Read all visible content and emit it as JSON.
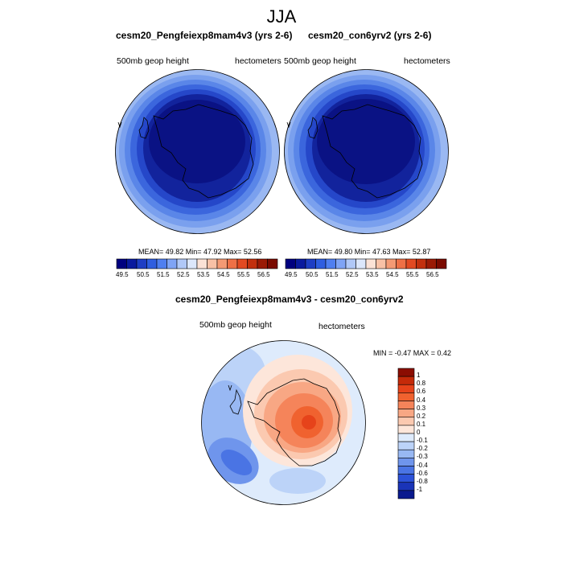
{
  "title": "JJA",
  "panels": [
    {
      "title": "cesm20_Pengfeiexp8mam4v3 (yrs 2-6)",
      "left_label": "500mb geop height",
      "right_label": "hectometers",
      "stats": "MEAN=  49.82  Min=  47.92  Max=  52.56"
    },
    {
      "title": "cesm20_con6yrv2 (yrs 2-6)",
      "left_label": "500mb geop height",
      "right_label": "hectometers",
      "stats": "MEAN=  49.80  Min=  47.63  Max=  52.87"
    }
  ],
  "top_colorbar": {
    "labels": [
      "49.5",
      "50.5",
      "51.5",
      "52.5",
      "53.5",
      "54.5",
      "55.5",
      "56.5"
    ],
    "colors": [
      "#00007f",
      "#0a1a9e",
      "#1e3ec4",
      "#2f5ee0",
      "#4f7ff0",
      "#7fa4f5",
      "#b0c8f7",
      "#dce7fb",
      "#fbe2d6",
      "#f8c1a6",
      "#f49a74",
      "#ee7046",
      "#e24a22",
      "#c2300e",
      "#9a1a05",
      "#7a0a00"
    ]
  },
  "diff_panel": {
    "title": "cesm20_Pengfeiexp8mam4v3 - cesm20_con6yrv2",
    "left_label": "500mb geop height",
    "right_label": "hectometers",
    "stats": "MIN = -0.47 MAX =   0.42",
    "colorbar": {
      "labels": [
        "1",
        "0.8",
        "0.6",
        "0.4",
        "0.3",
        "0.2",
        "0.1",
        "0",
        "-0.1",
        "-0.2",
        "-0.3",
        "-0.4",
        "-0.6",
        "-0.8",
        "-1"
      ],
      "colors": [
        "#8b0d02",
        "#c42a09",
        "#e6431a",
        "#f0622f",
        "#f5845a",
        "#f8a784",
        "#fbc9b0",
        "#fde6da",
        "#deebfc",
        "#bcd3f8",
        "#98b8f3",
        "#6f95ec",
        "#4a74e4",
        "#2c52d8",
        "#1a34b8",
        "#0a1a8e"
      ]
    }
  }
}
